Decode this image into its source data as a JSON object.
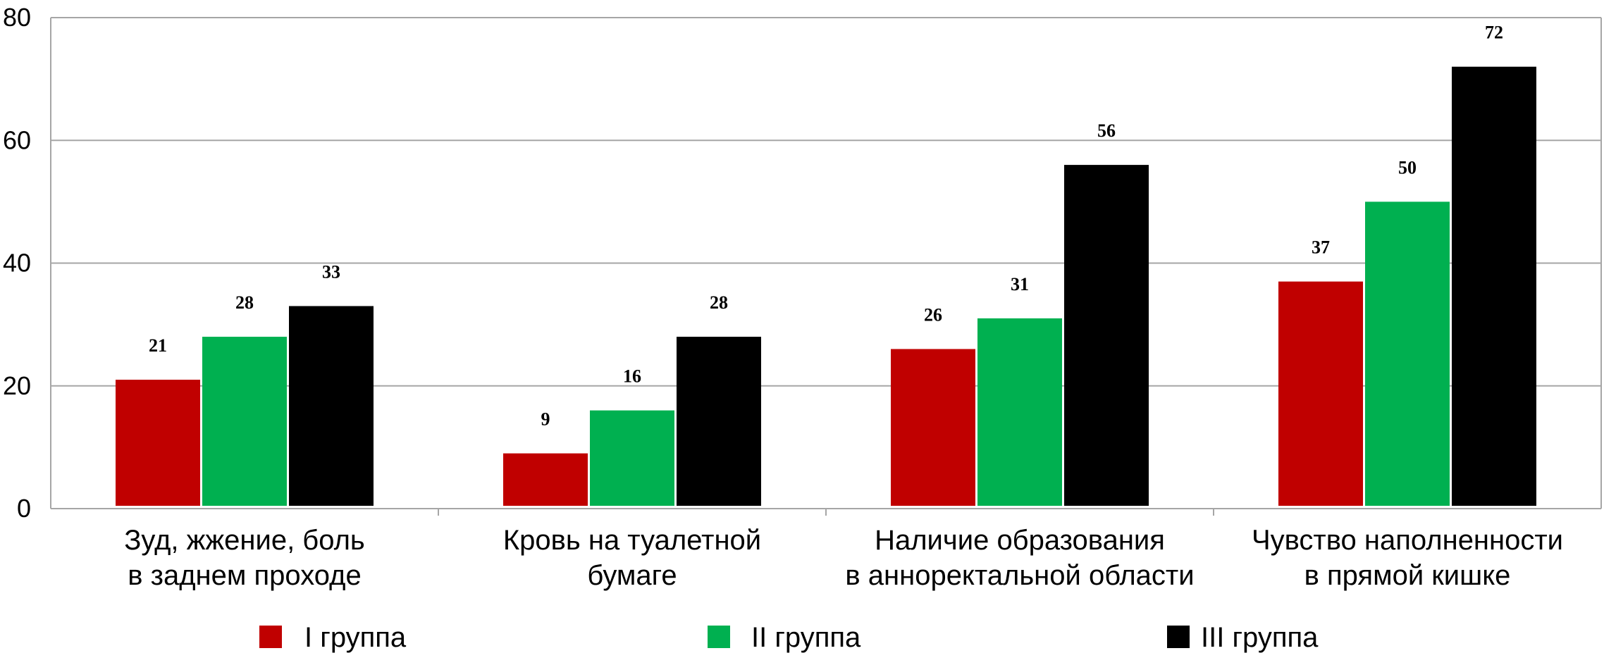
{
  "chart_data": {
    "type": "bar",
    "categories": [
      [
        "Зуд, жжение, боль",
        "в заднем проходе"
      ],
      [
        "Кровь на туалетной",
        "бумаге"
      ],
      [
        "Наличие образования",
        "в анноректальной области"
      ],
      [
        "Чувство наполненности",
        "в прямой кишке"
      ]
    ],
    "series": [
      {
        "name": "I группа",
        "color": "#c00000",
        "values": [
          21,
          9,
          26,
          37
        ],
        "labels": [
          "21",
          "9",
          "26",
          "37"
        ]
      },
      {
        "name": "II группа",
        "color": "#00b050",
        "values": [
          28,
          16,
          31,
          50
        ],
        "labels": [
          "28",
          "16",
          "31",
          "50"
        ]
      },
      {
        "name": "III группа",
        "color": "#000000",
        "values": [
          33,
          28,
          56,
          72
        ],
        "labels": [
          "33",
          "28",
          "56",
          "72"
        ]
      }
    ],
    "yticks": [
      "0",
      "20",
      "40",
      "60",
      "80"
    ],
    "ylim": [
      0,
      80
    ],
    "grid": true,
    "legend_position": "bottom"
  }
}
